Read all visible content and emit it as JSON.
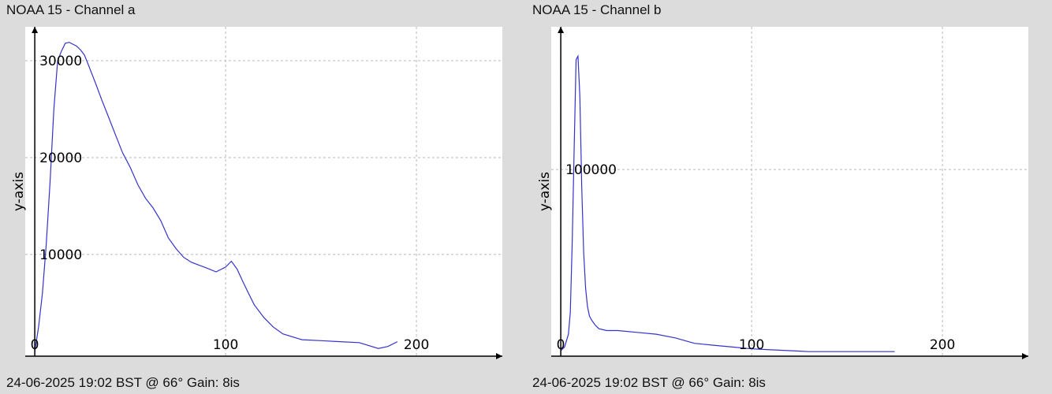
{
  "chart_data": [
    {
      "type": "line",
      "title": "NOAA 15 - Channel a",
      "footer": "24-06-2025 19:02 BST @ 66° Gain: 8is",
      "ylabel": "y-axis",
      "xlabel": "",
      "xlim": [
        -5,
        245
      ],
      "ylim": [
        -500,
        33500
      ],
      "xticks": [
        0,
        100,
        200
      ],
      "yticks": [
        10000,
        20000,
        30000
      ],
      "grid": true,
      "line_color": "#3333cc",
      "series": [
        {
          "x": [
            0,
            2,
            4,
            6,
            8,
            10,
            12,
            14,
            16,
            18,
            20,
            22,
            24,
            26,
            28,
            30,
            32,
            35,
            38,
            42,
            46,
            50,
            54,
            58,
            62,
            66,
            70,
            74,
            78,
            82,
            86,
            90,
            95,
            100,
            103,
            106,
            109,
            112,
            115,
            120,
            125,
            130,
            140,
            150,
            160,
            170,
            180,
            185,
            190
          ],
          "values": [
            0,
            2500,
            6000,
            11000,
            17500,
            25000,
            30000,
            31000,
            31800,
            31900,
            31700,
            31500,
            31100,
            30600,
            29600,
            28600,
            27600,
            26000,
            24500,
            22500,
            20500,
            19000,
            17200,
            15800,
            14800,
            13500,
            11700,
            10600,
            9700,
            9200,
            8900,
            8600,
            8200,
            8700,
            9300,
            8500,
            7200,
            6000,
            4800,
            3500,
            2500,
            1800,
            1200,
            1100,
            1000,
            900,
            300,
            500,
            1000
          ]
        }
      ]
    },
    {
      "type": "line",
      "title": "NOAA 15 - Channel b",
      "footer": "24-06-2025 19:02 BST @ 66° Gain: 8is",
      "ylabel": "y-axis",
      "xlabel": "",
      "xlim": [
        -5,
        245
      ],
      "ylim": [
        -2000,
        178000
      ],
      "xticks": [
        0,
        100,
        200
      ],
      "yticks": [
        100000
      ],
      "grid": true,
      "line_color": "#3333cc",
      "series": [
        {
          "x": [
            0,
            2,
            4,
            5,
            6,
            7,
            8,
            9,
            10,
            11,
            12,
            13,
            14,
            15,
            16,
            18,
            20,
            24,
            30,
            40,
            50,
            60,
            70,
            80,
            90,
            100,
            110,
            120,
            130,
            140,
            155,
            165,
            175
          ],
          "values": [
            1000,
            3000,
            10000,
            22000,
            60000,
            110000,
            160000,
            162000,
            140000,
            90000,
            55000,
            35000,
            25000,
            20000,
            18000,
            15000,
            13000,
            12000,
            12000,
            11000,
            10000,
            8000,
            5000,
            4000,
            3000,
            2000,
            1500,
            1000,
            500,
            500,
            500,
            500,
            500
          ]
        }
      ]
    }
  ]
}
